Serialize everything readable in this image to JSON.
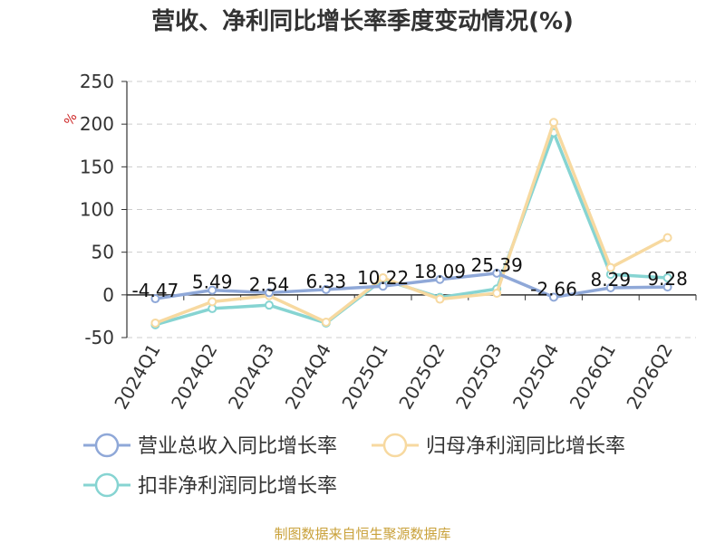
{
  "chart_data": {
    "type": "line",
    "title": "营收、净利同比增长率季度变动情况(%)",
    "ylabel": "%",
    "xlabel": "",
    "categories": [
      "2024Q1",
      "2024Q2",
      "2024Q3",
      "2024Q4",
      "2025Q1",
      "2025Q2",
      "2025Q3",
      "2025Q4",
      "2026Q1",
      "2026Q2"
    ],
    "ylim": [
      -50,
      250
    ],
    "yticks": [
      -50,
      0,
      50,
      100,
      150,
      200,
      250
    ],
    "grid": true,
    "legend_position": "bottom",
    "series": [
      {
        "name": "营业总收入同比增长率",
        "color": "#8fa8d8",
        "values": [
          -4.47,
          5.49,
          2.54,
          6.33,
          10.22,
          18.09,
          25.39,
          -2.66,
          8.29,
          9.28
        ],
        "labels": [
          "-4.47",
          "5.49",
          "2.54",
          "6.33",
          "10.22",
          "18.09",
          "25.39",
          "-2.66",
          "8.29",
          "9.28"
        ]
      },
      {
        "name": "归母净利润同比增长率",
        "color": "#f7d9a0",
        "values": [
          -33,
          -8,
          -1,
          -32,
          20,
          -5,
          2,
          202,
          32,
          67
        ]
      },
      {
        "name": "扣非净利润同比增长率",
        "color": "#86d4d2",
        "values": [
          -35,
          -16,
          -12,
          -33,
          18,
          -3,
          7,
          190,
          24,
          20
        ]
      }
    ]
  },
  "source": "制图数据来自恒生聚源数据库"
}
